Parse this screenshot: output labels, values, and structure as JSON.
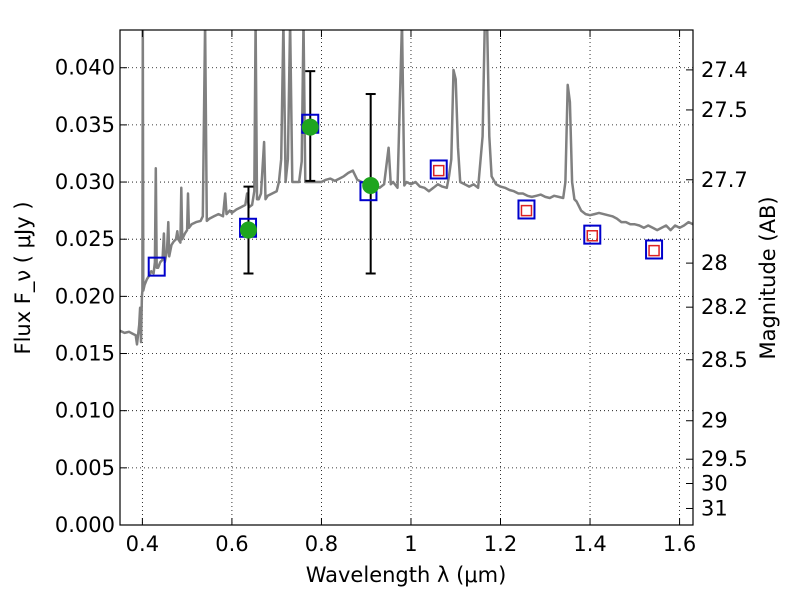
{
  "chart_data": {
    "type": "line",
    "xlabel": "Wavelength  λ (μm)",
    "ylabel": "Flux  F_ν  ( μJy )",
    "y2label": "Magnitude (AB)",
    "xlim": [
      0.35,
      1.63
    ],
    "ylim": [
      0.0,
      0.0433
    ],
    "grid": true,
    "x_ticks": [
      {
        "value": 0.4,
        "label": "0.4"
      },
      {
        "value": 0.6,
        "label": "0.6"
      },
      {
        "value": 0.8,
        "label": "0.8"
      },
      {
        "value": 1.0,
        "label": "1"
      },
      {
        "value": 1.2,
        "label": "1.2"
      },
      {
        "value": 1.4,
        "label": "1.4"
      },
      {
        "value": 1.6,
        "label": "1.6"
      }
    ],
    "y_ticks": [
      {
        "value": 0.0,
        "label": "0.000"
      },
      {
        "value": 0.005,
        "label": "0.005"
      },
      {
        "value": 0.01,
        "label": "0.010"
      },
      {
        "value": 0.015,
        "label": "0.015"
      },
      {
        "value": 0.02,
        "label": "0.020"
      },
      {
        "value": 0.025,
        "label": "0.025"
      },
      {
        "value": 0.03,
        "label": "0.030"
      },
      {
        "value": 0.035,
        "label": "0.035"
      },
      {
        "value": 0.04,
        "label": "0.040"
      }
    ],
    "mag_ticks": [
      {
        "mag": 27.4,
        "label": "27.4"
      },
      {
        "mag": 27.5,
        "label": "27.5"
      },
      {
        "mag": 27.7,
        "label": "27.7"
      },
      {
        "mag": 28.0,
        "label": "28"
      },
      {
        "mag": 28.2,
        "label": "28.2"
      },
      {
        "mag": 28.5,
        "label": "28.5"
      },
      {
        "mag": 29.0,
        "label": "29"
      },
      {
        "mag": 29.5,
        "label": "29.5"
      },
      {
        "mag": 30.0,
        "label": "30"
      },
      {
        "mag": 31.0,
        "label": "31"
      }
    ],
    "spectrum": {
      "color": "#808080",
      "points": [
        [
          0.35,
          0.017
        ],
        [
          0.36,
          0.0168
        ],
        [
          0.37,
          0.0169
        ],
        [
          0.38,
          0.0167
        ],
        [
          0.385,
          0.0166
        ],
        [
          0.388,
          0.0158
        ],
        [
          0.39,
          0.0165
        ],
        [
          0.393,
          0.0175
        ],
        [
          0.395,
          0.019
        ],
        [
          0.397,
          0.016
        ],
        [
          0.399,
          0.02
        ],
        [
          0.4,
          0.0205
        ],
        [
          0.401,
          0.044
        ],
        [
          0.402,
          0.0205
        ],
        [
          0.405,
          0.021
        ],
        [
          0.41,
          0.0215
        ],
        [
          0.415,
          0.0218
        ],
        [
          0.42,
          0.0222
        ],
        [
          0.425,
          0.022
        ],
        [
          0.428,
          0.023
        ],
        [
          0.43,
          0.0312
        ],
        [
          0.432,
          0.0225
        ],
        [
          0.435,
          0.0225
        ],
        [
          0.44,
          0.023
        ],
        [
          0.445,
          0.0232
        ],
        [
          0.448,
          0.0255
        ],
        [
          0.45,
          0.023
        ],
        [
          0.455,
          0.024
        ],
        [
          0.458,
          0.0265
        ],
        [
          0.46,
          0.0235
        ],
        [
          0.465,
          0.0245
        ],
        [
          0.47,
          0.0248
        ],
        [
          0.475,
          0.025
        ],
        [
          0.478,
          0.0257
        ],
        [
          0.48,
          0.025
        ],
        [
          0.485,
          0.0247
        ],
        [
          0.487,
          0.0295
        ],
        [
          0.489,
          0.025
        ],
        [
          0.495,
          0.0255
        ],
        [
          0.5,
          0.0258
        ],
        [
          0.502,
          0.029
        ],
        [
          0.504,
          0.026
        ],
        [
          0.51,
          0.0263
        ],
        [
          0.52,
          0.0265
        ],
        [
          0.53,
          0.0266
        ],
        [
          0.535,
          0.027
        ],
        [
          0.54,
          0.044
        ],
        [
          0.544,
          0.0266
        ],
        [
          0.55,
          0.0268
        ],
        [
          0.56,
          0.027
        ],
        [
          0.57,
          0.0272
        ],
        [
          0.58,
          0.027
        ],
        [
          0.585,
          0.029
        ],
        [
          0.588,
          0.0272
        ],
        [
          0.595,
          0.0275
        ],
        [
          0.6,
          0.0273
        ],
        [
          0.61,
          0.0276
        ],
        [
          0.62,
          0.0278
        ],
        [
          0.63,
          0.028
        ],
        [
          0.634,
          0.029
        ],
        [
          0.638,
          0.0278
        ],
        [
          0.645,
          0.028
        ],
        [
          0.65,
          0.0292
        ],
        [
          0.653,
          0.044
        ],
        [
          0.656,
          0.0285
        ],
        [
          0.66,
          0.0285
        ],
        [
          0.665,
          0.029
        ],
        [
          0.672,
          0.0335
        ],
        [
          0.675,
          0.0285
        ],
        [
          0.68,
          0.0288
        ],
        [
          0.69,
          0.029
        ],
        [
          0.7,
          0.0292
        ],
        [
          0.705,
          0.03
        ],
        [
          0.71,
          0.032
        ],
        [
          0.715,
          0.044
        ],
        [
          0.72,
          0.03
        ],
        [
          0.725,
          0.032
        ],
        [
          0.73,
          0.044
        ],
        [
          0.735,
          0.03
        ],
        [
          0.74,
          0.03
        ],
        [
          0.75,
          0.03
        ],
        [
          0.756,
          0.0318
        ],
        [
          0.76,
          0.044
        ],
        [
          0.764,
          0.03
        ],
        [
          0.77,
          0.03
        ],
        [
          0.78,
          0.03
        ],
        [
          0.79,
          0.03
        ],
        [
          0.8,
          0.03
        ],
        [
          0.81,
          0.0302
        ],
        [
          0.82,
          0.0303
        ],
        [
          0.83,
          0.0301
        ],
        [
          0.84,
          0.0303
        ],
        [
          0.85,
          0.0305
        ],
        [
          0.86,
          0.0308
        ],
        [
          0.87,
          0.031
        ],
        [
          0.88,
          0.0302
        ],
        [
          0.89,
          0.03
        ],
        [
          0.9,
          0.0298
        ],
        [
          0.91,
          0.0296
        ],
        [
          0.92,
          0.0298
        ],
        [
          0.93,
          0.0295
        ],
        [
          0.94,
          0.0298
        ],
        [
          0.95,
          0.033
        ],
        [
          0.955,
          0.0298
        ],
        [
          0.96,
          0.03
        ],
        [
          0.97,
          0.0295
        ],
        [
          0.98,
          0.044
        ],
        [
          0.985,
          0.0297
        ],
        [
          0.99,
          0.03
        ],
        [
          1.0,
          0.0298
        ],
        [
          1.01,
          0.03
        ],
        [
          1.02,
          0.0296
        ],
        [
          1.03,
          0.0295
        ],
        [
          1.04,
          0.0292
        ],
        [
          1.05,
          0.0295
        ],
        [
          1.06,
          0.0298
        ],
        [
          1.07,
          0.0296
        ],
        [
          1.08,
          0.0295
        ],
        [
          1.085,
          0.0305
        ],
        [
          1.09,
          0.032
        ],
        [
          1.095,
          0.0398
        ],
        [
          1.1,
          0.039
        ],
        [
          1.105,
          0.033
        ],
        [
          1.11,
          0.03
        ],
        [
          1.12,
          0.0298
        ],
        [
          1.13,
          0.0296
        ],
        [
          1.14,
          0.0298
        ],
        [
          1.15,
          0.0295
        ],
        [
          1.16,
          0.034
        ],
        [
          1.165,
          0.044
        ],
        [
          1.17,
          0.044
        ],
        [
          1.175,
          0.034
        ],
        [
          1.18,
          0.0305
        ],
        [
          1.19,
          0.0298
        ],
        [
          1.2,
          0.0296
        ],
        [
          1.21,
          0.0295
        ],
        [
          1.22,
          0.0293
        ],
        [
          1.23,
          0.0292
        ],
        [
          1.24,
          0.029
        ],
        [
          1.25,
          0.029
        ],
        [
          1.26,
          0.0288
        ],
        [
          1.27,
          0.0287
        ],
        [
          1.28,
          0.0288
        ],
        [
          1.29,
          0.0289
        ],
        [
          1.3,
          0.0287
        ],
        [
          1.31,
          0.0286
        ],
        [
          1.32,
          0.0288
        ],
        [
          1.33,
          0.0287
        ],
        [
          1.34,
          0.0286
        ],
        [
          1.345,
          0.03
        ],
        [
          1.35,
          0.0385
        ],
        [
          1.355,
          0.037
        ],
        [
          1.36,
          0.03
        ],
        [
          1.365,
          0.0285
        ],
        [
          1.37,
          0.0283
        ],
        [
          1.38,
          0.0275
        ],
        [
          1.39,
          0.0272
        ],
        [
          1.4,
          0.0271
        ],
        [
          1.41,
          0.0272
        ],
        [
          1.42,
          0.0273
        ],
        [
          1.43,
          0.0272
        ],
        [
          1.44,
          0.0271
        ],
        [
          1.45,
          0.027
        ],
        [
          1.46,
          0.0268
        ],
        [
          1.47,
          0.0265
        ],
        [
          1.48,
          0.0265
        ],
        [
          1.49,
          0.0263
        ],
        [
          1.5,
          0.0263
        ],
        [
          1.51,
          0.0262
        ],
        [
          1.52,
          0.026
        ],
        [
          1.53,
          0.0262
        ],
        [
          1.54,
          0.026
        ],
        [
          1.55,
          0.0258
        ],
        [
          1.56,
          0.026
        ],
        [
          1.57,
          0.0262
        ],
        [
          1.58,
          0.0258
        ],
        [
          1.59,
          0.0262
        ],
        [
          1.6,
          0.026
        ],
        [
          1.61,
          0.0262
        ],
        [
          1.62,
          0.0265
        ],
        [
          1.63,
          0.0263
        ]
      ]
    },
    "measured_points": {
      "color": "#1ea51e",
      "points": [
        {
          "x": 0.637,
          "y": 0.0258,
          "yerr_low": 0.0038,
          "yerr_high": 0.0038
        },
        {
          "x": 0.775,
          "y": 0.0348,
          "yerr_low": 0.0047,
          "yerr_high": 0.0049
        },
        {
          "x": 0.91,
          "y": 0.0297,
          "yerr_low": 0.0077,
          "yerr_high": 0.008
        }
      ]
    },
    "model_photometry_blue": {
      "color": "#0000cc",
      "points": [
        {
          "x": 0.432,
          "y": 0.0226
        },
        {
          "x": 0.636,
          "y": 0.026
        },
        {
          "x": 0.775,
          "y": 0.0351
        },
        {
          "x": 0.905,
          "y": 0.0292
        },
        {
          "x": 1.062,
          "y": 0.0311
        },
        {
          "x": 1.258,
          "y": 0.0276
        },
        {
          "x": 1.405,
          "y": 0.0254
        },
        {
          "x": 1.543,
          "y": 0.0241
        }
      ]
    },
    "model_photometry_red": {
      "color": "#dd2222",
      "points": [
        {
          "x": 1.062,
          "y": 0.031
        },
        {
          "x": 1.258,
          "y": 0.0275
        },
        {
          "x": 1.405,
          "y": 0.0253
        },
        {
          "x": 1.543,
          "y": 0.024
        }
      ]
    }
  }
}
